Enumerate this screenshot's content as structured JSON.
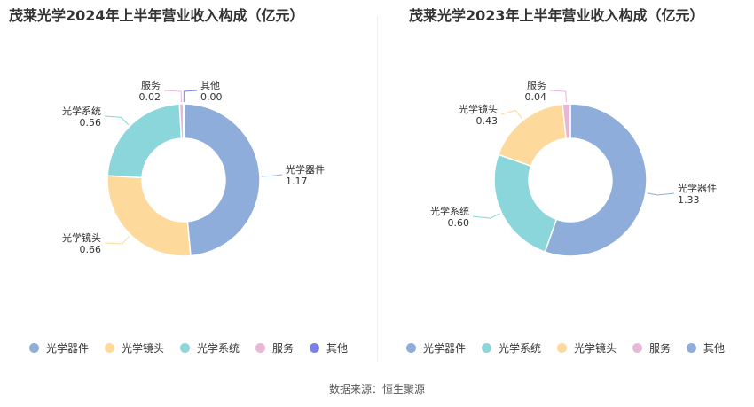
{
  "source_label": "数据来源：恒生聚源",
  "chart_data": [
    {
      "type": "pie",
      "title": "茂莱光学2024年上半年营业收入构成（亿元）",
      "slices": [
        {
          "name": "光学器件",
          "value": 1.17,
          "label": "1.17",
          "color": "#8eaddb"
        },
        {
          "name": "光学镜头",
          "value": 0.66,
          "label": "0.66",
          "color": "#fdd99b"
        },
        {
          "name": "光学系统",
          "value": 0.56,
          "label": "0.56",
          "color": "#8ad6da"
        },
        {
          "name": "服务",
          "value": 0.02,
          "label": "0.02",
          "color": "#e9b7d6"
        },
        {
          "name": "其他",
          "value": 0.001,
          "label": "0.00",
          "color": "#7b7fe8"
        }
      ],
      "legend": [
        {
          "name": "光学器件",
          "color": "#8eaddb"
        },
        {
          "name": "光学镜头",
          "color": "#fdd99b"
        },
        {
          "name": "光学系统",
          "color": "#8ad6da"
        },
        {
          "name": "服务",
          "color": "#e9b7d6"
        },
        {
          "name": "其他",
          "color": "#7b7fe8"
        }
      ],
      "legend_position": "bottom"
    },
    {
      "type": "pie",
      "title": "茂莱光学2023年上半年营业收入构成（亿元）",
      "slices": [
        {
          "name": "光学器件",
          "value": 1.33,
          "label": "1.33",
          "color": "#8eaddb"
        },
        {
          "name": "光学系统",
          "value": 0.6,
          "label": "0.60",
          "color": "#8ad6da"
        },
        {
          "name": "光学镜头",
          "value": 0.43,
          "label": "0.43",
          "color": "#fdd99b"
        },
        {
          "name": "服务",
          "value": 0.04,
          "label": "0.04",
          "color": "#e9b7d6"
        }
      ],
      "legend": [
        {
          "name": "光学器件",
          "color": "#8eaddb"
        },
        {
          "name": "光学系统",
          "color": "#8ad6da"
        },
        {
          "name": "光学镜头",
          "color": "#fdd99b"
        },
        {
          "name": "服务",
          "color": "#e9b7d6"
        },
        {
          "name": "其他",
          "color": "#8eaddb"
        }
      ],
      "legend_position": "bottom"
    }
  ]
}
